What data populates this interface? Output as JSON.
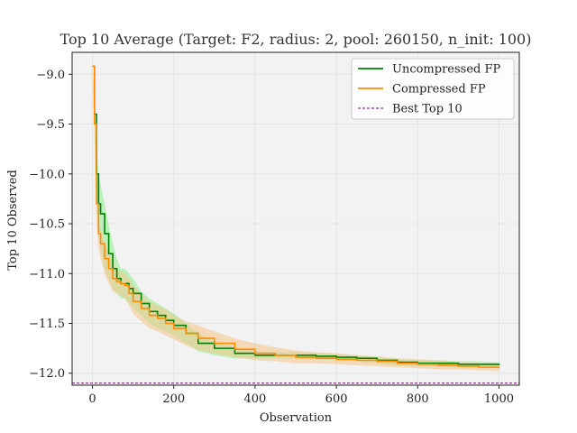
{
  "chart_data": {
    "type": "line",
    "title": "Top 10 Average (Target: F2, radius: 2, pool: 260150, n_init: 100)",
    "xlabel": "Observation",
    "ylabel": "Top 10 Observed",
    "xlim": [
      -50,
      1050
    ],
    "ylim": [
      -12.12,
      -8.78
    ],
    "xticks": [
      0,
      200,
      400,
      600,
      800,
      1000
    ],
    "yticks": [
      -12.0,
      -11.5,
      -11.0,
      -10.5,
      -10.0,
      -9.5,
      -9.0
    ],
    "grid": true,
    "legend_position": "top-right",
    "best_top10": -12.1,
    "series": [
      {
        "name": "Uncompressed FP",
        "color": "#008000",
        "band_color": "#90ee90",
        "x": [
          0,
          5,
          10,
          15,
          20,
          30,
          40,
          50,
          60,
          70,
          80,
          90,
          100,
          120,
          140,
          160,
          180,
          200,
          230,
          260,
          300,
          350,
          400,
          450,
          500,
          550,
          600,
          650,
          700,
          750,
          800,
          850,
          900,
          950,
          1000
        ],
        "y": [
          -8.92,
          -9.4,
          -10.0,
          -10.3,
          -10.4,
          -10.6,
          -10.8,
          -10.95,
          -11.05,
          -11.1,
          -11.1,
          -11.15,
          -11.2,
          -11.3,
          -11.38,
          -11.42,
          -11.47,
          -11.52,
          -11.6,
          -11.7,
          -11.75,
          -11.8,
          -11.82,
          -11.82,
          -11.82,
          -11.83,
          -11.84,
          -11.85,
          -11.87,
          -11.89,
          -11.9,
          -11.9,
          -11.91,
          -11.91,
          -11.92
        ],
        "lower": [
          -8.95,
          -9.55,
          -10.2,
          -10.6,
          -10.75,
          -10.95,
          -11.05,
          -11.15,
          -11.2,
          -11.25,
          -11.25,
          -11.3,
          -11.35,
          -11.42,
          -11.5,
          -11.55,
          -11.58,
          -11.62,
          -11.7,
          -11.78,
          -11.82,
          -11.85,
          -11.85,
          -11.85,
          -11.85,
          -11.86,
          -11.87,
          -11.88,
          -11.9,
          -11.92,
          -11.93,
          -11.93,
          -11.94,
          -11.94,
          -11.95
        ],
        "upper": [
          -8.9,
          -9.25,
          -9.8,
          -10.0,
          -10.1,
          -10.3,
          -10.5,
          -10.7,
          -10.85,
          -10.95,
          -10.95,
          -11.0,
          -11.05,
          -11.18,
          -11.25,
          -11.3,
          -11.35,
          -11.4,
          -11.5,
          -11.6,
          -11.68,
          -11.74,
          -11.78,
          -11.79,
          -11.79,
          -11.8,
          -11.81,
          -11.82,
          -11.84,
          -11.86,
          -11.87,
          -11.87,
          -11.88,
          -11.88,
          -11.89
        ]
      },
      {
        "name": "Compressed FP",
        "color": "#ff8c00",
        "band_color": "#f5c48a",
        "x": [
          0,
          5,
          10,
          15,
          20,
          30,
          40,
          50,
          60,
          70,
          80,
          90,
          100,
          120,
          140,
          160,
          180,
          200,
          230,
          260,
          300,
          350,
          400,
          450,
          500,
          550,
          600,
          650,
          700,
          750,
          800,
          850,
          900,
          950,
          1000
        ],
        "y": [
          -8.92,
          -9.5,
          -10.3,
          -10.6,
          -10.7,
          -10.85,
          -10.95,
          -11.05,
          -11.08,
          -11.1,
          -11.12,
          -11.2,
          -11.28,
          -11.35,
          -11.42,
          -11.45,
          -11.5,
          -11.55,
          -11.6,
          -11.65,
          -11.7,
          -11.76,
          -11.8,
          -11.82,
          -11.84,
          -11.85,
          -11.86,
          -11.87,
          -11.88,
          -11.9,
          -11.91,
          -11.92,
          -11.93,
          -11.94,
          -11.95
        ],
        "lower": [
          -8.95,
          -9.65,
          -10.45,
          -10.75,
          -10.85,
          -11.0,
          -11.1,
          -11.18,
          -11.2,
          -11.22,
          -11.25,
          -11.32,
          -11.4,
          -11.48,
          -11.55,
          -11.58,
          -11.62,
          -11.66,
          -11.72,
          -11.77,
          -11.8,
          -11.84,
          -11.87,
          -11.88,
          -11.9,
          -11.9,
          -11.91,
          -11.92,
          -11.93,
          -11.94,
          -11.95,
          -11.96,
          -11.96,
          -11.97,
          -11.98
        ],
        "upper": [
          -8.9,
          -9.35,
          -10.1,
          -10.45,
          -10.55,
          -10.7,
          -10.8,
          -10.9,
          -10.95,
          -10.98,
          -11.0,
          -11.05,
          -11.12,
          -11.2,
          -11.28,
          -11.32,
          -11.36,
          -11.42,
          -11.48,
          -11.52,
          -11.58,
          -11.65,
          -11.7,
          -11.74,
          -11.77,
          -11.79,
          -11.8,
          -11.82,
          -11.83,
          -11.85,
          -11.86,
          -11.87,
          -11.89,
          -11.9,
          -11.91
        ]
      }
    ],
    "reference_line": {
      "name": "Best Top 10",
      "color": "#800080",
      "style": "dashed"
    }
  }
}
